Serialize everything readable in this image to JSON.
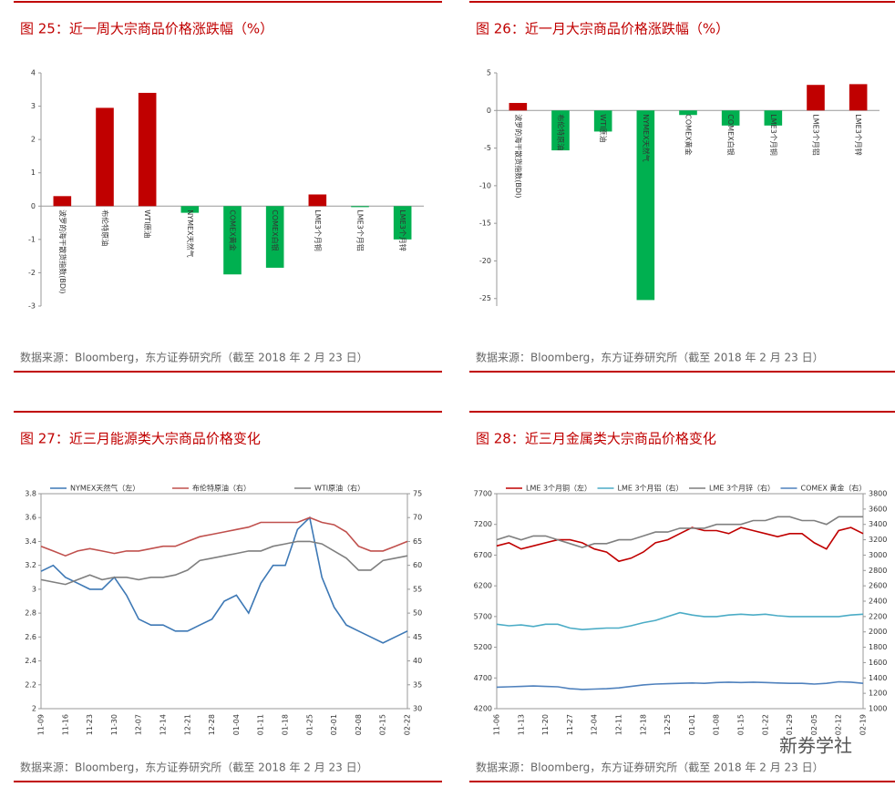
{
  "chart_data": [
    {
      "type": "bar",
      "title": "图 25：近一周大宗商品价格涨跌幅（%）",
      "source": "数据来源：Bloomberg，东方证券研究所（截至 2018 年 2 月 23 日）",
      "categories": [
        "波罗的海干散货指数(BDI)",
        "布伦特原油",
        "WTI原油",
        "NYMEX天然气",
        "COMEX黄金",
        "COMEX白银",
        "LME3个月铜",
        "LME3个月铝",
        "LME3个月锌"
      ],
      "values": [
        0.3,
        2.95,
        3.4,
        -0.2,
        -2.05,
        -1.85,
        0.35,
        -0.03,
        -1.0
      ],
      "pos_color": "#c00000",
      "neg_color": "#00b050",
      "ylim": [
        -3,
        4
      ],
      "yticks": [
        -3,
        -2,
        -1,
        0,
        1,
        2,
        3,
        4
      ]
    },
    {
      "type": "bar",
      "title": "图 26：近一月大宗商品价格涨跌幅（%）",
      "source": "数据来源：Bloomberg，东方证券研究所（截至 2018 年 2 月 23 日）",
      "categories": [
        "波罗的海干散货指数(BDI)",
        "布伦特原油",
        "WTI原油",
        "NYMEX天然气",
        "COMEX黄金",
        "COMEX白银",
        "LME3个月铜",
        "LME3个月铝",
        "LME3个月锌"
      ],
      "values": [
        1.0,
        -5.3,
        -2.8,
        -25.2,
        -0.6,
        -2.0,
        -2.0,
        3.4,
        3.5
      ],
      "pos_color": "#c00000",
      "neg_color": "#00b050",
      "ylim": [
        -26,
        5
      ],
      "yticks": [
        -25,
        -20,
        -15,
        -10,
        -5,
        0,
        5
      ]
    },
    {
      "type": "line",
      "title": "图 27：近三月能源类大宗商品价格变化",
      "source": "数据来源：Bloomberg，东方证券研究所（截至 2018 年 2 月 23 日）",
      "categories": [
        "11-09",
        null,
        "11-16",
        null,
        "11-23",
        null,
        "11-30",
        null,
        "12-07",
        null,
        "12-14",
        null,
        "12-21",
        null,
        "12-28",
        null,
        "01-04",
        null,
        "01-11",
        null,
        "01-18",
        null,
        "01-25",
        null,
        "02-01",
        null,
        "02-08",
        null,
        "02-15",
        null,
        "02-22"
      ],
      "ylim": [
        2,
        3.8
      ],
      "yticks": [
        2,
        2.2,
        2.4,
        2.6,
        2.8,
        3,
        3.2,
        3.4,
        3.6,
        3.8
      ],
      "y2lim": [
        30,
        75
      ],
      "y2ticks": [
        30,
        35,
        40,
        45,
        50,
        55,
        60,
        65,
        70,
        75
      ],
      "series": [
        {
          "name": "NYMEX天然气（左）",
          "color": "#3d78b5",
          "values": [
            3.15,
            3.2,
            3.1,
            3.05,
            3.0,
            3.0,
            3.1,
            2.95,
            2.75,
            2.7,
            2.7,
            2.65,
            2.65,
            2.7,
            2.75,
            2.9,
            2.95,
            2.8,
            3.05,
            3.2,
            3.2,
            3.5,
            3.6,
            3.1,
            2.85,
            2.7,
            2.65,
            2.6,
            2.55,
            2.6,
            2.65
          ]
        },
        {
          "name": "布伦特原油（右）",
          "color": "#c0504d",
          "axis": "y2",
          "values": [
            64,
            63,
            62,
            63,
            63.5,
            63,
            62.5,
            63,
            63,
            63.5,
            64,
            64,
            65,
            66,
            66.5,
            67,
            67.5,
            68,
            69,
            69,
            69,
            69,
            70,
            69,
            68.5,
            67,
            64,
            63,
            63,
            64,
            65
          ]
        },
        {
          "name": "WTI原油（右）",
          "color": "#7f7f7f",
          "axis": "y2",
          "values": [
            57,
            56.5,
            56,
            57,
            58,
            57,
            57.5,
            57.5,
            57,
            57.5,
            57.5,
            58,
            59,
            61,
            61.5,
            62,
            62.5,
            63,
            63,
            64,
            64.5,
            65,
            65,
            64.5,
            63,
            61.5,
            59,
            59,
            61,
            61.5,
            62
          ]
        }
      ]
    },
    {
      "type": "line",
      "title": "图 28：近三月金属类大宗商品价格变化",
      "source": "数据来源：Bloomberg，东方证券研究所（截至 2018 年 2 月 23 日）",
      "watermark": "新券学社",
      "categories": [
        "11-06",
        null,
        "11-13",
        null,
        "11-20",
        null,
        "11-27",
        null,
        "12-04",
        null,
        "12-11",
        null,
        "12-18",
        null,
        "12-25",
        null,
        "01-01",
        null,
        "01-08",
        null,
        "01-15",
        null,
        "01-22",
        null,
        "01-29",
        null,
        "02-05",
        null,
        "02-12",
        null,
        "02-19"
      ],
      "ylim": [
        4200,
        7700
      ],
      "yticks": [
        4200,
        4700,
        5200,
        5700,
        6200,
        6700,
        7200,
        7700
      ],
      "y2lim": [
        1000,
        3800
      ],
      "y2ticks": [
        1000,
        1200,
        1400,
        1600,
        1800,
        2000,
        2200,
        2400,
        2600,
        2800,
        3000,
        3200,
        3400,
        3600,
        3800
      ],
      "series": [
        {
          "name": "LME 3个月铜（左）",
          "color": "#c00000",
          "values": [
            6850,
            6900,
            6800,
            6850,
            6900,
            6950,
            6950,
            6900,
            6800,
            6750,
            6600,
            6650,
            6750,
            6900,
            6950,
            7050,
            7150,
            7100,
            7100,
            7050,
            7150,
            7100,
            7050,
            7000,
            7050,
            7050,
            6900,
            6800,
            7100,
            7150,
            7050
          ]
        },
        {
          "name": "LME 3个月铝（右）",
          "color": "#4bacc6",
          "axis": "y2",
          "values": [
            2100,
            2080,
            2090,
            2070,
            2100,
            2100,
            2050,
            2030,
            2040,
            2050,
            2050,
            2080,
            2120,
            2150,
            2200,
            2250,
            2220,
            2200,
            2200,
            2220,
            2230,
            2220,
            2230,
            2210,
            2200,
            2200,
            2200,
            2200,
            2200,
            2220,
            2230
          ]
        },
        {
          "name": "LME 3个月锌（右）",
          "color": "#7f7f7f",
          "axis": "y2",
          "values": [
            3200,
            3250,
            3200,
            3250,
            3250,
            3200,
            3150,
            3100,
            3150,
            3150,
            3200,
            3200,
            3250,
            3300,
            3300,
            3350,
            3350,
            3350,
            3400,
            3400,
            3400,
            3450,
            3450,
            3500,
            3500,
            3450,
            3450,
            3400,
            3500,
            3500,
            3500
          ]
        },
        {
          "name": "COMEX 黄金（右）",
          "color": "#4f81bd",
          "axis": "y2",
          "values": [
            1280,
            1285,
            1290,
            1295,
            1290,
            1285,
            1260,
            1250,
            1255,
            1260,
            1270,
            1290,
            1310,
            1320,
            1325,
            1330,
            1335,
            1330,
            1340,
            1345,
            1340,
            1345,
            1340,
            1335,
            1330,
            1330,
            1320,
            1330,
            1350,
            1345,
            1330
          ]
        }
      ]
    }
  ]
}
